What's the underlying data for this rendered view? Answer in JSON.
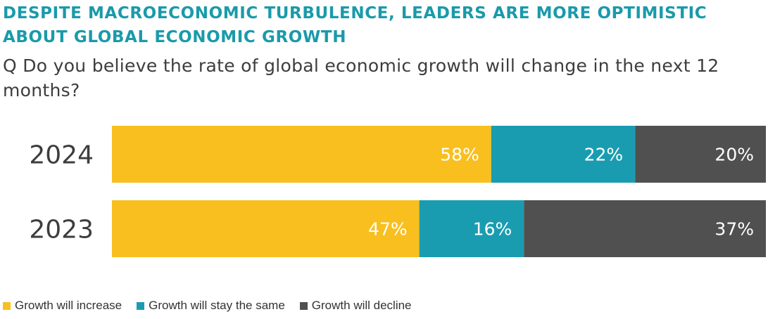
{
  "header": {
    "title": "DESPITE MACROECONOMIC TURBULENCE, LEADERS ARE MORE OPTIMISTIC ABOUT GLOBAL ECONOMIC GROWTH",
    "question": "Q Do you believe the rate of global economic growth will change in the next 12 months?"
  },
  "chart_data": {
    "type": "bar",
    "orientation": "horizontal",
    "stacked": true,
    "categories": [
      "2024",
      "2023"
    ],
    "series": [
      {
        "name": "Growth will increase",
        "values": [
          58,
          47
        ],
        "labels": [
          "58%",
          "47%"
        ],
        "color": "#f8bf1e"
      },
      {
        "name": "Growth will stay the same",
        "values": [
          22,
          16
        ],
        "labels": [
          "22%",
          "16%"
        ],
        "color": "#1a9cb0"
      },
      {
        "name": "Growth will decline",
        "values": [
          20,
          37
        ],
        "labels": [
          "20%",
          "37%"
        ],
        "color": "#505050"
      }
    ],
    "value_unit": "%",
    "legend_position": "bottom",
    "grid": false
  },
  "colors": {
    "title": "#1a9aaa",
    "text": "#3d3d3d",
    "bar_label": "#ffffff"
  }
}
